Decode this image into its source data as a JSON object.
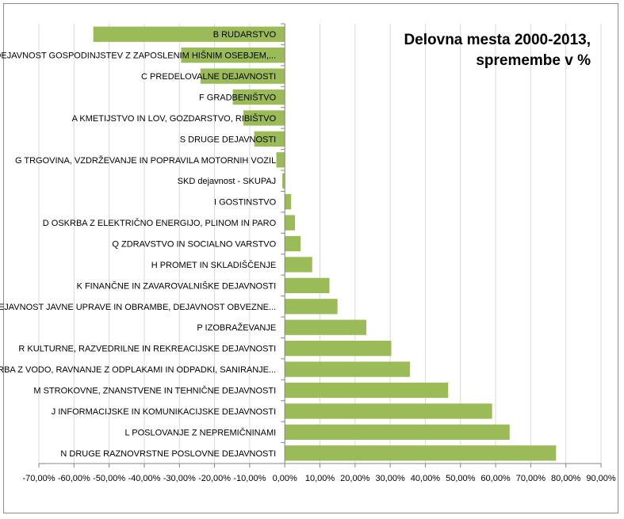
{
  "chart_data": {
    "type": "bar",
    "orientation": "horizontal",
    "title_lines": [
      "Delovna mesta 2000-2013,",
      "spremembe v %"
    ],
    "xlabel": "",
    "ylabel": "",
    "xlim": [
      -0.7,
      0.9
    ],
    "x_ticks": [
      "-70,00%",
      "-60,00%",
      "-50,00%",
      "-40,00%",
      "-30,00%",
      "-20,00%",
      "-10,00%",
      "0,00%",
      "10,00%",
      "20,00%",
      "30,00%",
      "40,00%",
      "50,00%",
      "60,00%",
      "70,00%",
      "80,00%",
      "90,00%"
    ],
    "grid": true,
    "legend": "none",
    "bar_color": "#9bbb59",
    "series": [
      {
        "categories": [
          "B RUDARSTVO",
          "T DEJAVNOST GOSPODINJSTEV Z ZAPOSLENIM HIŠNIM OSEBJEM,...",
          "C PREDELOVALNE DEJAVNOSTI",
          "F GRADBENIŠTVO",
          "A KMETIJSTVO IN LOV, GOZDARSTVO, RIBIŠTVO",
          "S DRUGE DEJAVNOSTI",
          "G TRGOVINA, VZDRŽEVANJE IN POPRAVILA MOTORNIH VOZIL",
          "SKD dejavnost - SKUPAJ",
          "I GOSTINSTVO",
          "D OSKRBA Z ELEKTRIČNO ENERGIJO, PLINOM IN PARO",
          "Q ZDRAVSTVO IN SOCIALNO VARSTVO",
          "H PROMET IN SKLADIŠČENJE",
          "K FINANČNE IN ZAVAROVALNIŠKE DEJAVNOSTI",
          "O DEJAVNOST JAVNE UPRAVE IN OBRAMBE, DEJAVNOST OBVEZNE...",
          "P IZOBRAŽEVANJE",
          "R KULTURNE, RAZVEDRILNE IN REKREACIJSKE DEJAVNOSTI",
          "OSKRBA Z VODO, RAVNANJE Z ODPLAKAMI IN ODPADKI, SANIRANJE...",
          "M STROKOVNE, ZNANSTVENE IN TEHNIČNE DEJAVNOSTI",
          "J INFORMACIJSKE IN KOMUNIKACIJSKE DEJAVNOSTI",
          "L POSLOVANJE Z NEPREMIČNINAMI",
          "N DRUGE RAZNOVRSTNE POSLOVNE DEJAVNOSTI"
        ],
        "values": [
          -0.545,
          -0.295,
          -0.24,
          -0.148,
          -0.118,
          -0.087,
          -0.024,
          -0.007,
          0.018,
          0.029,
          0.045,
          0.078,
          0.127,
          0.15,
          0.232,
          0.303,
          0.356,
          0.465,
          0.59,
          0.64,
          0.772
        ]
      }
    ]
  }
}
